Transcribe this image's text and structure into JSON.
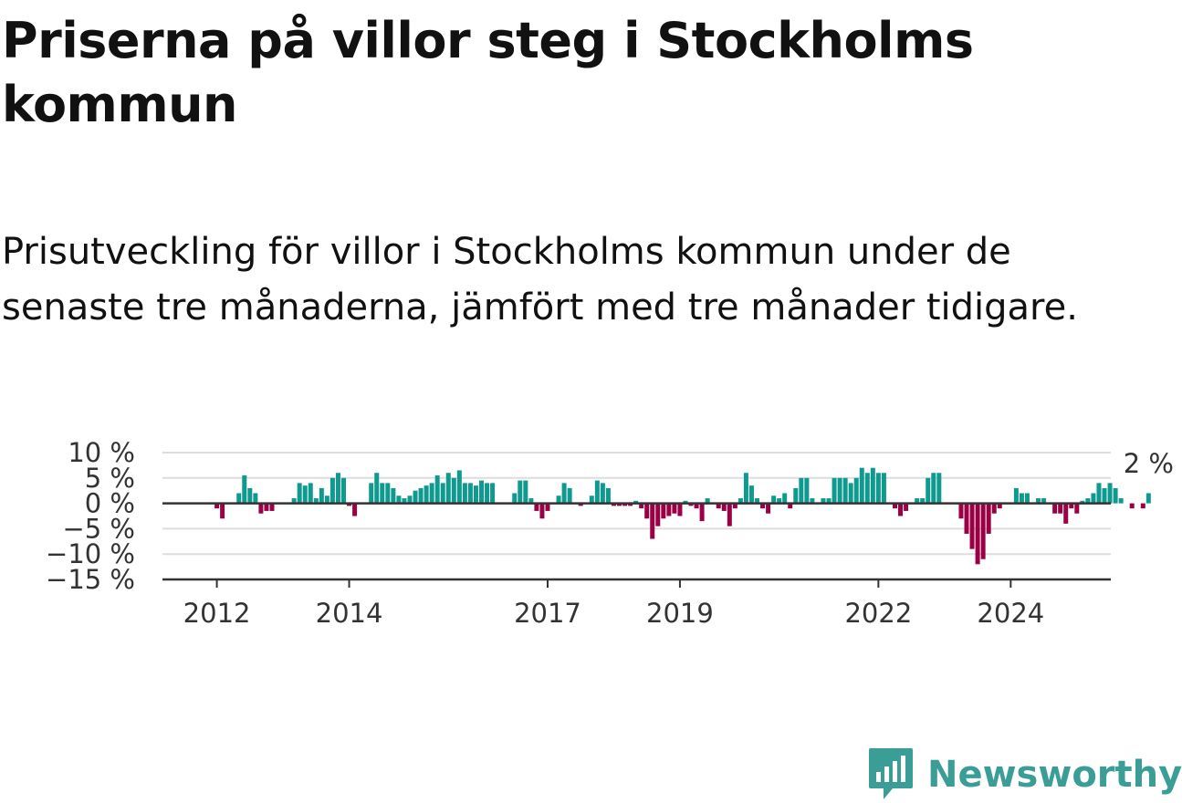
{
  "title": "Priserna på villor steg i Stockholms kommun",
  "subtitle": "Prisutveckling för villor i Stockholms kommun under de senaste tre månaderna, jämfört med tre månader tidigare.",
  "logo": {
    "text": "Newsworthy",
    "icon": "newsworthy-logo-icon",
    "color": "#3a9d96"
  },
  "chart_data": {
    "type": "bar",
    "x_start": "2011-11",
    "ylim": [
      -15,
      10
    ],
    "yticks": [
      10,
      5,
      0,
      -5,
      -10,
      -15
    ],
    "ytick_labels": [
      "10 %",
      "5 %",
      "0 %",
      "−5 %",
      "−10 %",
      "−15 %"
    ],
    "xticks": [
      {
        "label": "2012",
        "month": "2012-01"
      },
      {
        "label": "2014",
        "month": "2014-01"
      },
      {
        "label": "2017",
        "month": "2017-01"
      },
      {
        "label": "2019",
        "month": "2019-01"
      },
      {
        "label": "2022",
        "month": "2022-01"
      },
      {
        "label": "2024",
        "month": "2024-01"
      }
    ],
    "positive_color": "#0f9a90",
    "negative_color": "#9b0046",
    "grid": true,
    "last_value_label": "2 %",
    "values": [
      0,
      0,
      -1,
      -3,
      0,
      0,
      2,
      5.5,
      3,
      2,
      -2,
      -1.5,
      -1.5,
      0,
      0,
      0,
      1,
      4,
      3.5,
      4,
      1,
      3,
      1.5,
      5,
      6,
      5,
      -0.5,
      -2.5,
      0,
      0,
      4,
      6,
      4,
      4,
      3,
      1.5,
      1,
      1.5,
      2.5,
      3,
      3.5,
      4,
      5.5,
      4,
      6,
      5,
      6.5,
      4,
      4,
      3.5,
      4.5,
      4,
      4,
      0,
      0,
      0,
      2,
      4.5,
      4.5,
      1,
      -1.5,
      -3,
      -1.5,
      0,
      1.5,
      4,
      3,
      0,
      -0.5,
      0,
      1.5,
      4.5,
      4,
      3,
      -0.5,
      -0.5,
      -0.5,
      -0.5,
      0.5,
      -1,
      -3,
      -7,
      -4.5,
      -3,
      -2.5,
      -2,
      -2.5,
      0.5,
      -0.5,
      -1,
      -3.5,
      1,
      0,
      -1,
      -1.5,
      -4.5,
      -1,
      1,
      6,
      3.5,
      1,
      -1,
      -2,
      1.5,
      1,
      2,
      -1,
      3,
      5,
      5,
      1,
      0,
      1,
      1,
      5,
      5,
      5,
      4,
      5,
      7,
      6,
      7,
      6,
      6,
      0,
      -1,
      -2.5,
      -1.5,
      0,
      1,
      1,
      5,
      6,
      6,
      0,
      0,
      0,
      -3,
      -6,
      -9,
      -12,
      -11,
      -6,
      -2,
      -1,
      0,
      0,
      3,
      2,
      2,
      0,
      1,
      1,
      0,
      -2,
      -2,
      -4,
      -1,
      -2,
      0.5,
      1,
      2,
      4,
      3,
      4,
      3,
      1,
      0,
      -1,
      0,
      -1,
      2
    ]
  }
}
